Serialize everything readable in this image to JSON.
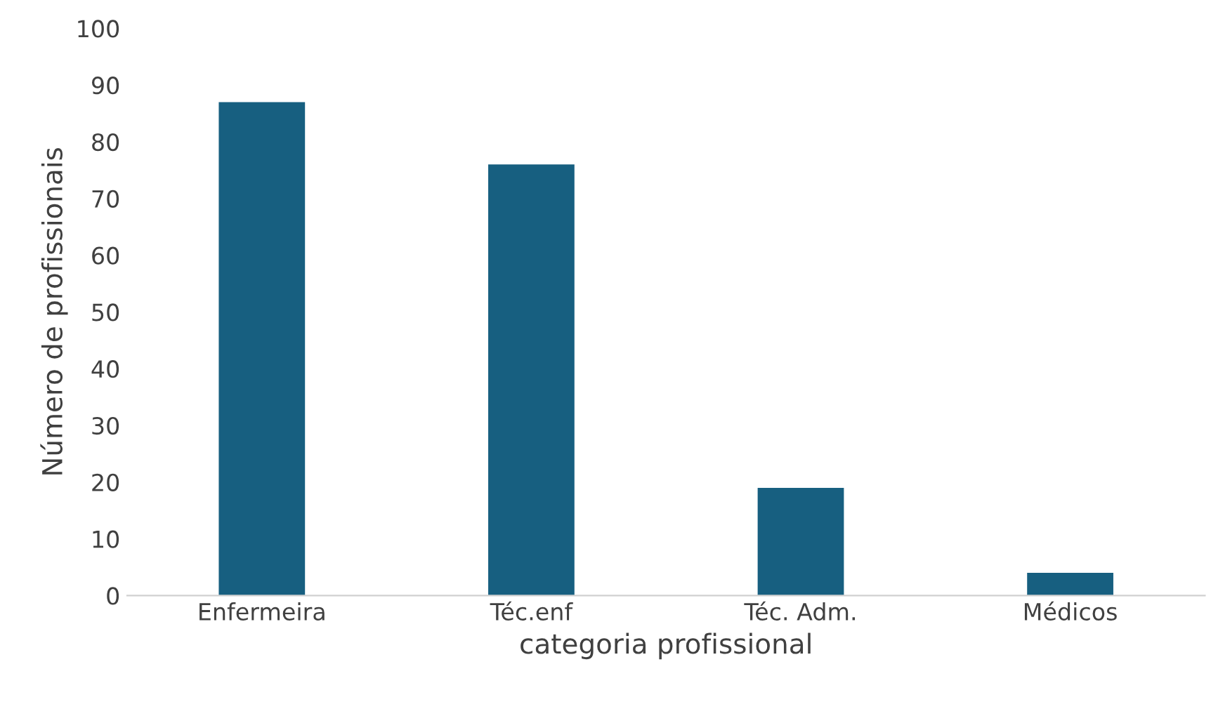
{
  "chart_data": {
    "type": "bar",
    "xlabel": "categoria profissional",
    "ylabel": "Número de profissionais",
    "categories": [
      "Enfermeira",
      "Téc.enf",
      "Téc. Adm.",
      "Médicos"
    ],
    "values": [
      87,
      76,
      19,
      4
    ],
    "color": "#175f80",
    "ylim": [
      0,
      100
    ],
    "yticks": [
      0,
      10,
      20,
      30,
      40,
      50,
      60,
      70,
      80,
      90,
      100
    ],
    "grid": false,
    "legend": false
  }
}
